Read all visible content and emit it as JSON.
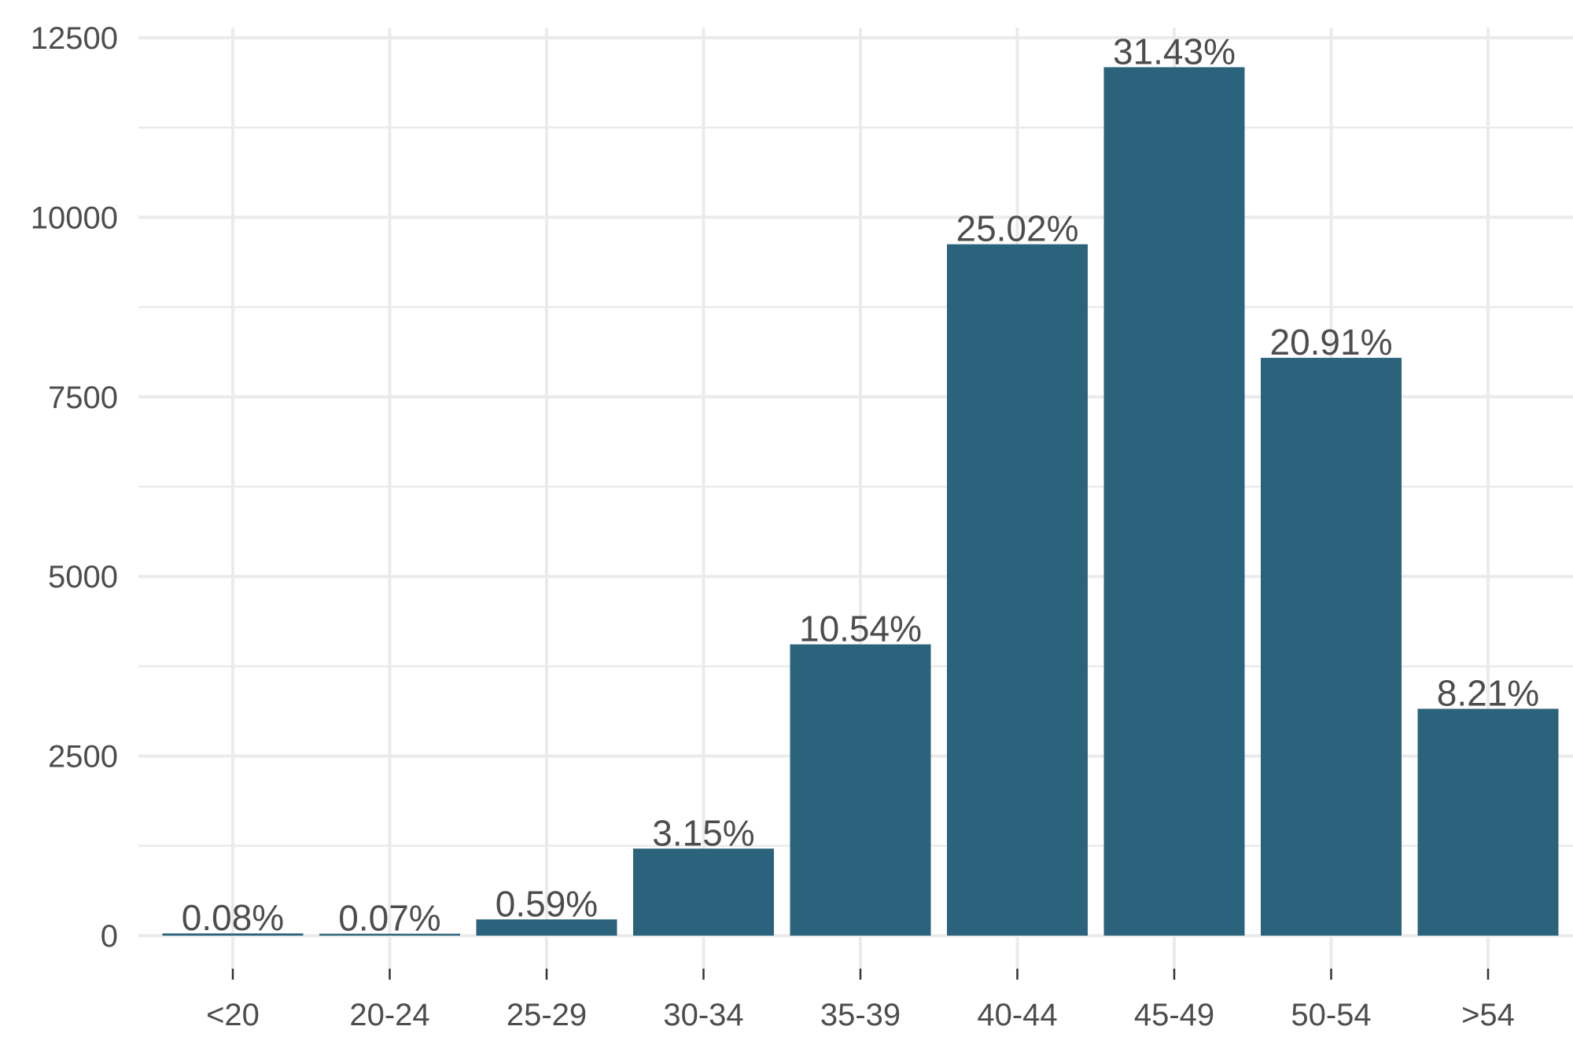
{
  "chart_data": {
    "type": "bar",
    "title": "",
    "xlabel": "",
    "ylabel": "",
    "categories": [
      "<20",
      "20-24",
      "25-29",
      "30-34",
      "35-39",
      "40-44",
      "45-49",
      "50-54",
      ">54"
    ],
    "values": [
      31,
      27,
      226,
      1212,
      4055,
      9625,
      12090,
      8044,
      3158
    ],
    "labels": [
      "0.08%",
      "0.07%",
      "0.59%",
      "3.15%",
      "10.54%",
      "25.02%",
      "31.43%",
      "20.91%",
      "8.21%"
    ],
    "ylim": [
      0,
      12500
    ],
    "yticks": [
      "0",
      "2500",
      "5000",
      "7500",
      "10000",
      "12500"
    ],
    "grid": true,
    "legend": "none",
    "colors": {
      "bar": "#2a637b",
      "grid": "#ebebeb",
      "text": "#4d4d4d"
    }
  }
}
